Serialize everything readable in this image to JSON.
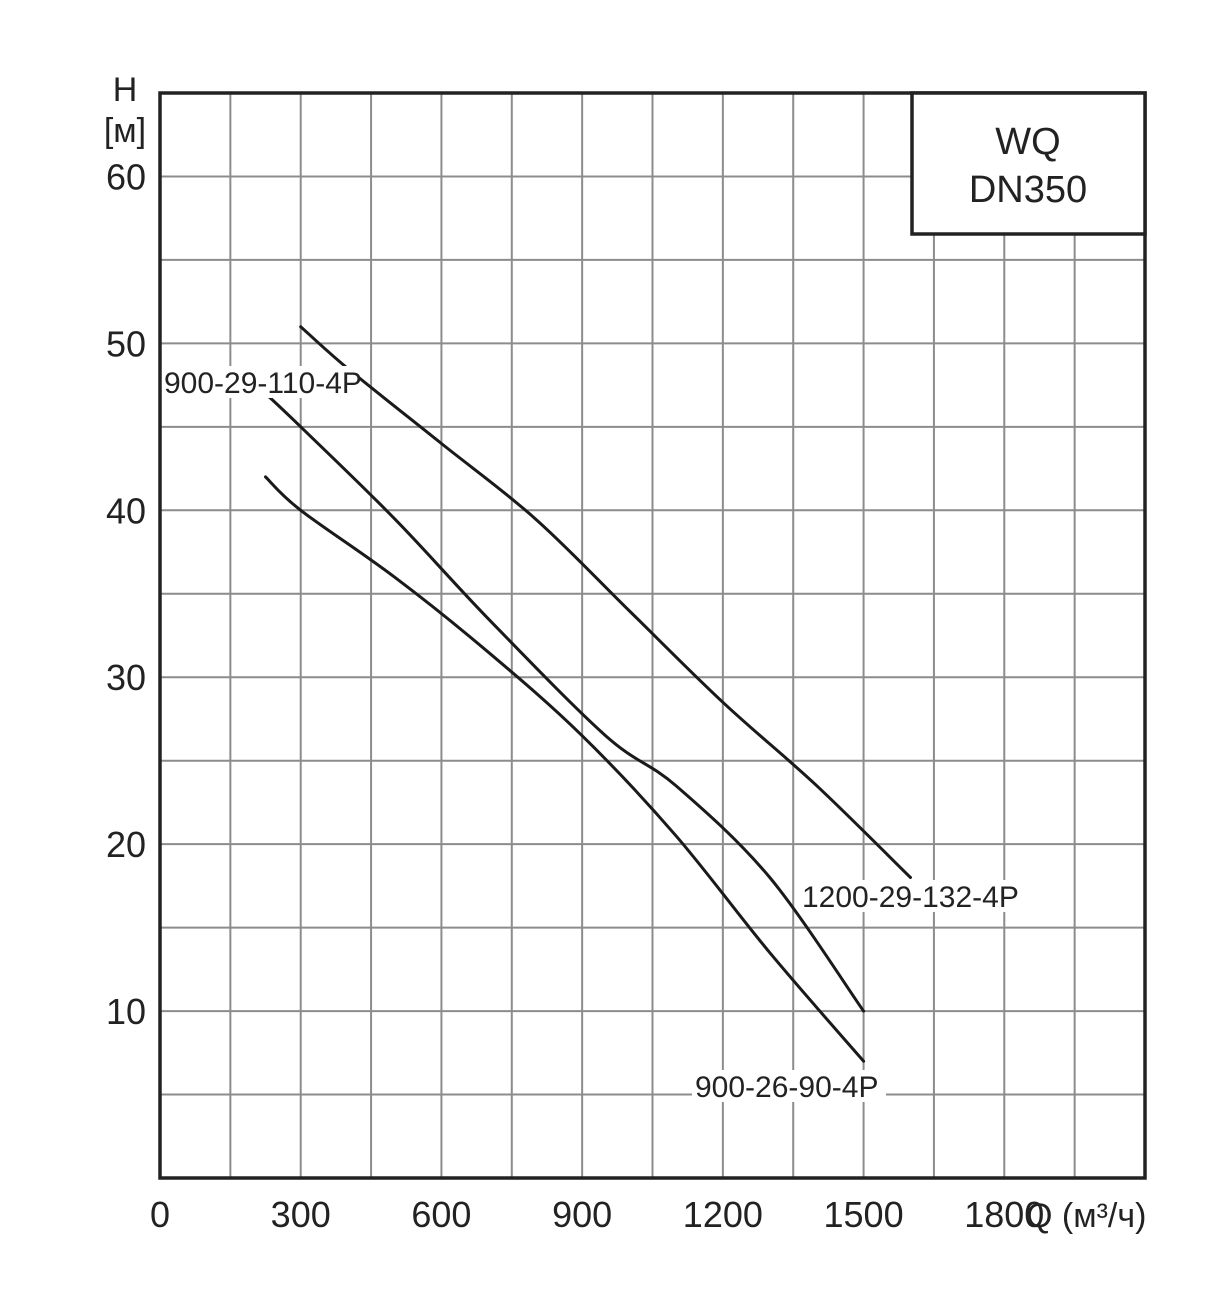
{
  "chart_data": {
    "type": "line",
    "title_box": [
      "WQ",
      "DN350"
    ],
    "xlabel": "Q (м³/ч)",
    "ylabel": [
      "H",
      "[м]"
    ],
    "xlim": [
      0,
      2100
    ],
    "ylim": [
      0,
      65
    ],
    "x_major_step": 150,
    "y_major_step": 5,
    "x_ticks": [
      0,
      300,
      600,
      900,
      1200,
      1500,
      1800
    ],
    "x_tick_labels": [
      "0",
      "300",
      "600",
      "900",
      "1200",
      "1500",
      "1800"
    ],
    "y_ticks": [
      10,
      20,
      30,
      40,
      50,
      60
    ],
    "y_tick_labels": [
      "10",
      "20",
      "30",
      "40",
      "50",
      "60"
    ],
    "grid": true,
    "series": [
      {
        "name": "1200-29-132-4P",
        "x": [
          300,
          400,
          600,
          800,
          1000,
          1200,
          1400,
          1600
        ],
        "y": [
          51,
          48.5,
          44,
          39.5,
          34,
          28.5,
          23.5,
          18
        ]
      },
      {
        "name": "900-29-110-4P",
        "x": [
          225,
          300,
          500,
          700,
          950,
          1100,
          1300,
          1500
        ],
        "y": [
          47,
          45,
          39.5,
          33.5,
          26.5,
          23.5,
          18,
          10
        ]
      },
      {
        "name": "900-26-90-4P",
        "x": [
          225,
          300,
          500,
          700,
          900,
          1100,
          1300,
          1500
        ],
        "y": [
          42,
          40,
          36,
          31.5,
          26.5,
          20.5,
          13.5,
          7
        ]
      }
    ]
  }
}
